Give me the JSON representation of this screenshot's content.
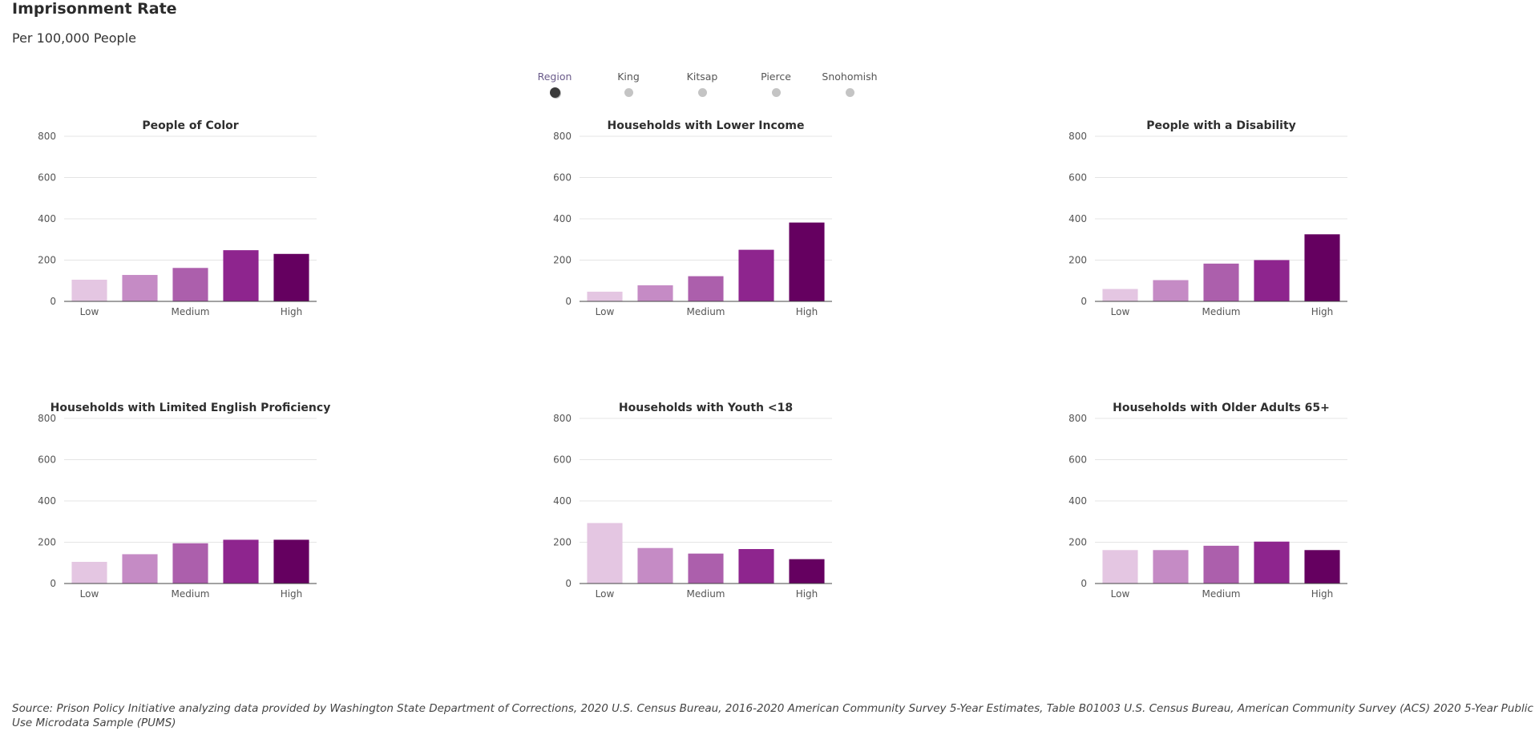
{
  "header": {
    "title": "Imprisonment Rate",
    "subtitle": "Per 100,000 People"
  },
  "selector": {
    "options": [
      "Region",
      "King",
      "Kitsap",
      "Pierce",
      "Snohomish"
    ],
    "selected": "Region"
  },
  "colors": {
    "bars": [
      "#e4c6e2",
      "#c58bc5",
      "#ac5fac",
      "#8e258e",
      "#650060"
    ],
    "grid": "#e4e4e4"
  },
  "chart_data": [
    {
      "type": "bar",
      "title": "People of Color",
      "categories": [
        "Low",
        "",
        "Medium",
        "",
        "High"
      ],
      "values": [
        105,
        128,
        162,
        248,
        230
      ],
      "ylim": [
        0,
        800
      ],
      "yticks": [
        0,
        200,
        400,
        600,
        800
      ],
      "grid": true,
      "legend": "none"
    },
    {
      "type": "bar",
      "title": "Households with Lower Income",
      "categories": [
        "Low",
        "",
        "Medium",
        "",
        "High"
      ],
      "values": [
        47,
        78,
        122,
        250,
        382
      ],
      "ylim": [
        0,
        800
      ],
      "yticks": [
        0,
        200,
        400,
        600,
        800
      ],
      "grid": true,
      "legend": "none"
    },
    {
      "type": "bar",
      "title": "People with a Disability",
      "categories": [
        "Low",
        "",
        "Medium",
        "",
        "High"
      ],
      "values": [
        60,
        103,
        183,
        200,
        325
      ],
      "ylim": [
        0,
        800
      ],
      "yticks": [
        0,
        200,
        400,
        600,
        800
      ],
      "grid": true,
      "legend": "none"
    },
    {
      "type": "bar",
      "title": "Households with Limited English Proficiency",
      "categories": [
        "Low",
        "",
        "Medium",
        "",
        "High"
      ],
      "values": [
        105,
        142,
        195,
        212,
        212
      ],
      "ylim": [
        0,
        800
      ],
      "yticks": [
        0,
        200,
        400,
        600,
        800
      ],
      "grid": true,
      "legend": "none"
    },
    {
      "type": "bar",
      "title": "Households with Youth <18",
      "categories": [
        "Low",
        "",
        "Medium",
        "",
        "High"
      ],
      "values": [
        293,
        172,
        145,
        167,
        118
      ],
      "ylim": [
        0,
        800
      ],
      "yticks": [
        0,
        200,
        400,
        600,
        800
      ],
      "grid": true,
      "legend": "none"
    },
    {
      "type": "bar",
      "title": "Households with Older Adults 65+",
      "categories": [
        "Low",
        "",
        "Medium",
        "",
        "High"
      ],
      "values": [
        162,
        162,
        183,
        203,
        162
      ],
      "ylim": [
        0,
        800
      ],
      "yticks": [
        0,
        200,
        400,
        600,
        800
      ],
      "grid": true,
      "legend": "none"
    }
  ],
  "footer": {
    "source": "Source: Prison Policy Initiative analyzing data provided by Washington State Department of Corrections, 2020 U.S. Census Bureau, 2016-2020 American Community Survey 5-Year Estimates, Table B01003 U.S. Census Bureau, American Community Survey (ACS) 2020 5-Year Public Use Microdata Sample (PUMS)"
  }
}
